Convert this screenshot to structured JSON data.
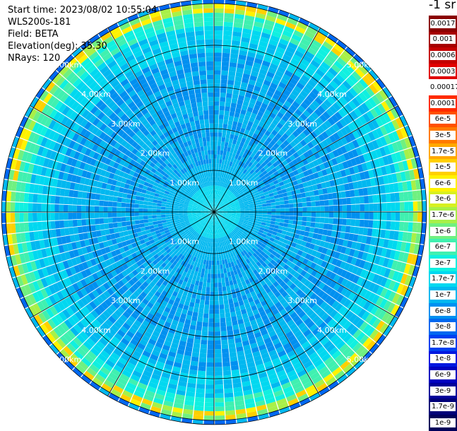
{
  "header": {
    "start_time": "Start time: 2023/08/02 10:55:04",
    "instrument": "WLS200s-181",
    "field": "Field: BETA",
    "elevation": "Elevation(deg): 35.30",
    "nrays": "NRays: 120"
  },
  "colorbar": {
    "unit": "-1 sr",
    "levels": [
      {
        "label": "0.0017",
        "color": "#8a0000"
      },
      {
        "label": "0.001",
        "color": "#a60000"
      },
      {
        "label": "0.0006",
        "color": "#c40000"
      },
      {
        "label": "0.0003",
        "color": "#e00000"
      },
      {
        "label": "0.00017",
        "color": "#ffffff"
      },
      {
        "label": "0.0001",
        "color": "#ff2a00"
      },
      {
        "label": "6e-5",
        "color": "#ff5000"
      },
      {
        "label": "3e-5",
        "color": "#ff7a00"
      },
      {
        "label": "1.7e-5",
        "color": "#ffa800"
      },
      {
        "label": "1e-5",
        "color": "#ffd000"
      },
      {
        "label": "6e-6",
        "color": "#fff200"
      },
      {
        "label": "3e-6",
        "color": "#d8f020"
      },
      {
        "label": "1.7e-6",
        "color": "#a8f048"
      },
      {
        "label": "1e-6",
        "color": "#70f080"
      },
      {
        "label": "6e-7",
        "color": "#40f0b0"
      },
      {
        "label": "3e-7",
        "color": "#10f0e0"
      },
      {
        "label": "1.7e-7",
        "color": "#00d8f0"
      },
      {
        "label": "1e-7",
        "color": "#00b8f0"
      },
      {
        "label": "6e-8",
        "color": "#0090f0"
      },
      {
        "label": "3e-8",
        "color": "#0068f0"
      },
      {
        "label": "1.7e-8",
        "color": "#0040f0"
      },
      {
        "label": "1e-8",
        "color": "#0018e0"
      },
      {
        "label": "6e-9",
        "color": "#0000c0"
      },
      {
        "label": "3e-9",
        "color": "#00009a"
      },
      {
        "label": "1.7e-9",
        "color": "#000078"
      },
      {
        "label": "1e-9",
        "color": "#00005a"
      }
    ]
  },
  "chart_data": {
    "type": "heatmap",
    "projection": "polar (PPI scan)",
    "field": "BETA",
    "elevation_deg": 35.3,
    "n_rays": 120,
    "range_rings_km": [
      1.0,
      2.0,
      3.0,
      4.0,
      5.0
    ],
    "ring_labels": [
      "1.00km",
      "2.00km",
      "3.00km",
      "4.00km",
      "5.00km"
    ],
    "max_range_km": 5.1,
    "azimuth_spokes_deg": [
      0,
      30,
      60,
      90,
      120,
      150,
      180,
      210,
      240,
      270,
      300,
      330
    ],
    "approx_beta_profile": [
      {
        "range_km": 0.2,
        "level": "1.7e-7"
      },
      {
        "range_km": 1.0,
        "level": "1e-7"
      },
      {
        "range_km": 2.0,
        "level": "6e-8"
      },
      {
        "range_km": 3.0,
        "level": "6e-8"
      },
      {
        "range_km": 4.0,
        "level": "1e-7"
      },
      {
        "range_km": 4.6,
        "level": "3e-7"
      },
      {
        "range_km": 4.9,
        "level": "3e-6"
      },
      {
        "range_km": 5.1,
        "level": "6e-8"
      }
    ]
  }
}
